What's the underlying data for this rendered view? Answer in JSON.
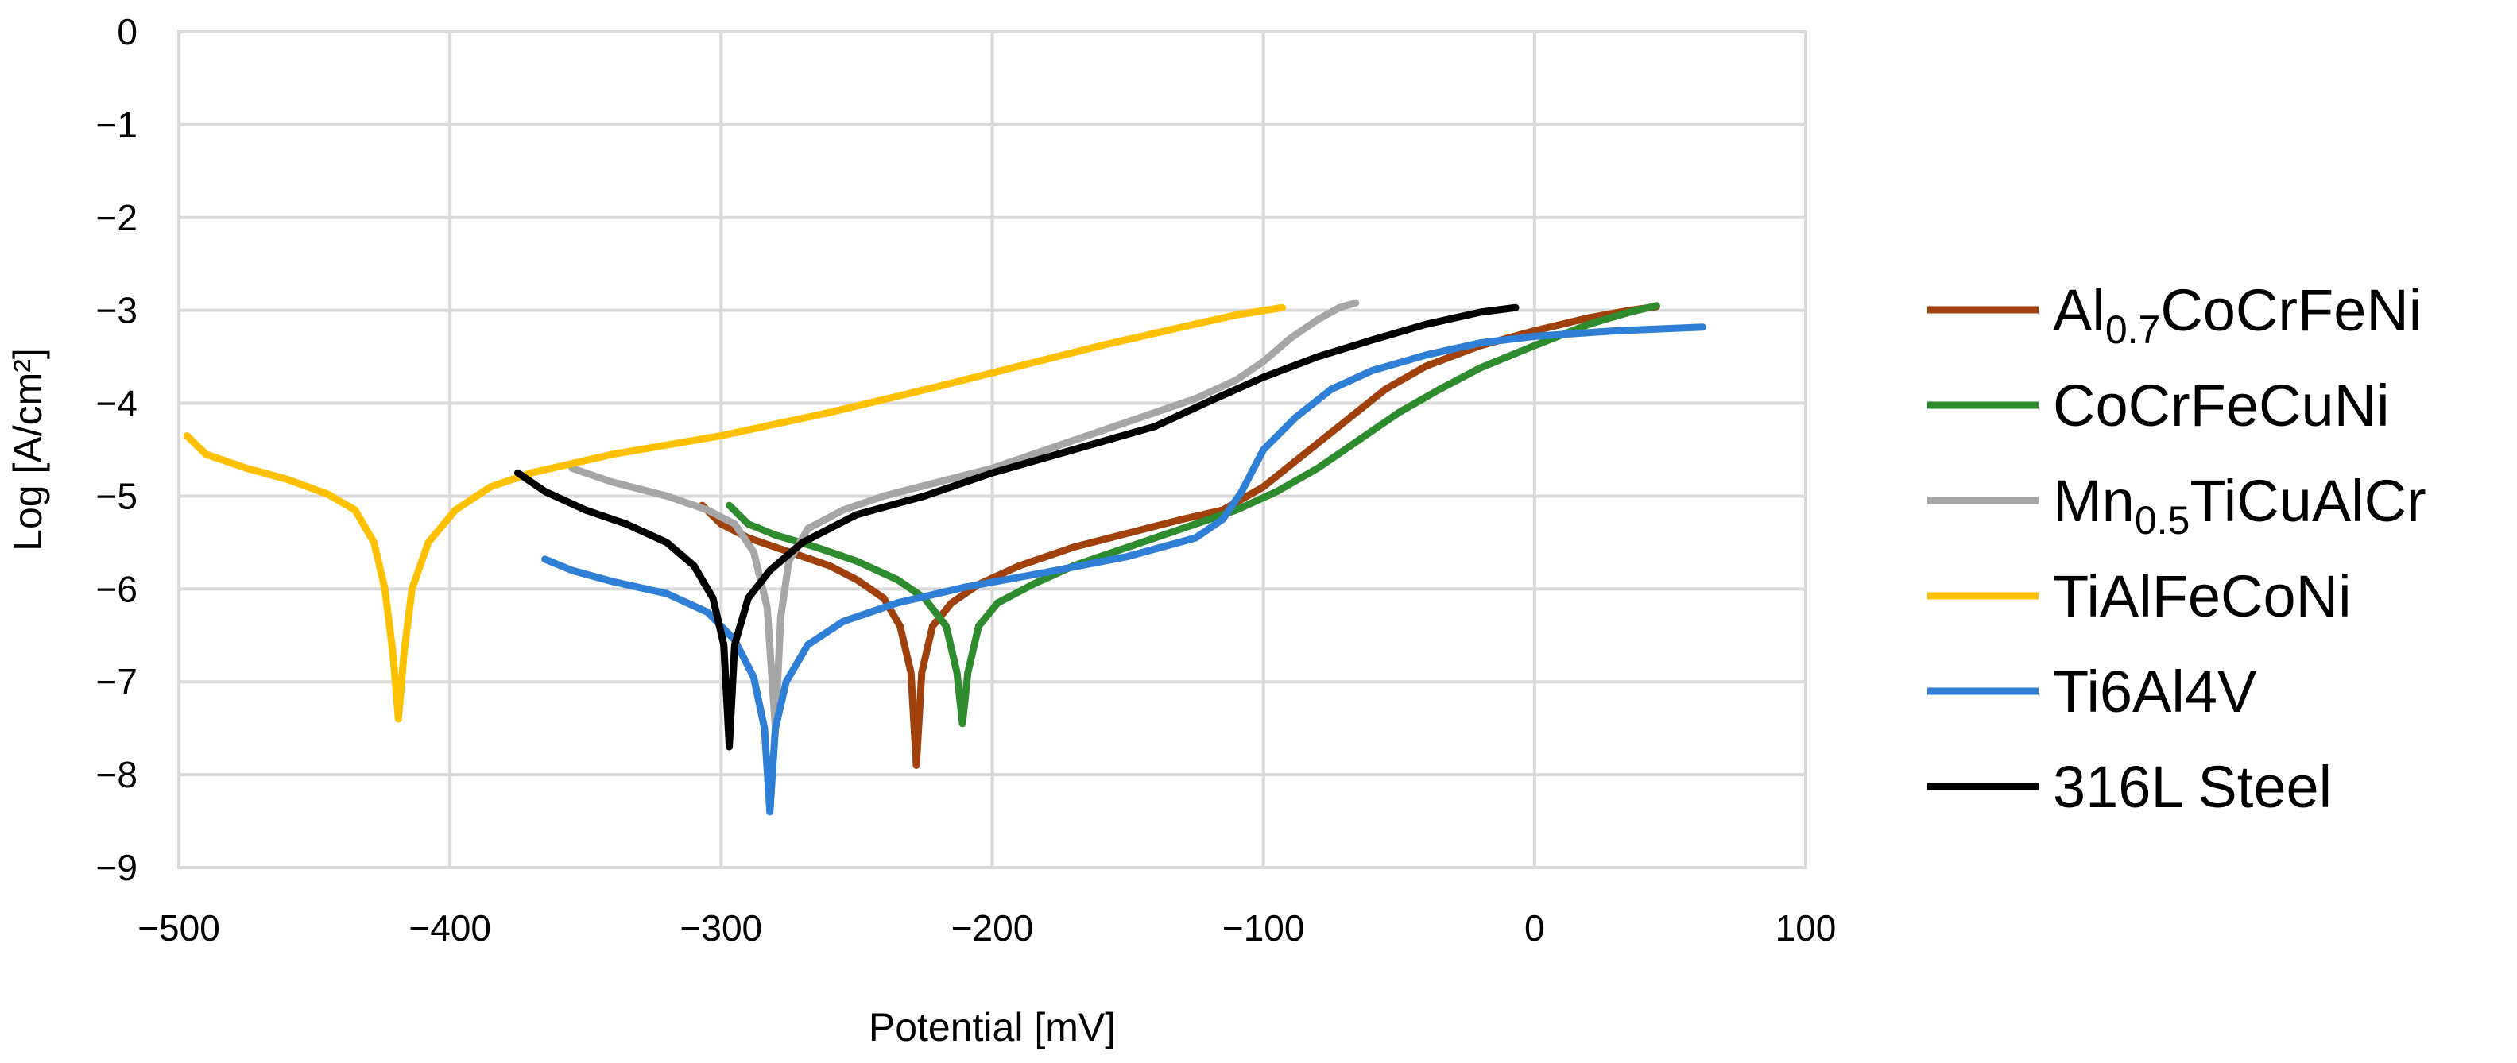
{
  "chart_data": {
    "type": "line",
    "title": "",
    "xlabel": "Potential [mV]",
    "ylabel": "Log [A/cm²]",
    "xlim": [
      -500,
      100
    ],
    "ylim": [
      -9,
      0
    ],
    "xticks": [
      -500,
      -400,
      -300,
      -200,
      -100,
      0,
      100
    ],
    "yticks": [
      0,
      -1,
      -2,
      -3,
      -4,
      -5,
      -6,
      -7,
      -8,
      -9
    ],
    "xtick_labels": [
      "−500",
      "−400",
      "−300",
      "−200",
      "−100",
      "0",
      "100"
    ],
    "ytick_labels": [
      "0",
      "−1",
      "−2",
      "−3",
      "−4",
      "−5",
      "−6",
      "−7",
      "−8",
      "−9"
    ],
    "grid": true,
    "legend_position": "right",
    "series": [
      {
        "name": "Al0.7CoCrFeNi",
        "label_parts": [
          "Al",
          "0.7",
          "CoCrFeNi"
        ],
        "color": "#a0410d",
        "points": [
          [
            -307,
            -5.1
          ],
          [
            -300,
            -5.3
          ],
          [
            -290,
            -5.45
          ],
          [
            -280,
            -5.55
          ],
          [
            -270,
            -5.65
          ],
          [
            -260,
            -5.75
          ],
          [
            -250,
            -5.9
          ],
          [
            -240,
            -6.1
          ],
          [
            -234,
            -6.4
          ],
          [
            -230,
            -6.9
          ],
          [
            -228,
            -7.9
          ],
          [
            -226,
            -6.9
          ],
          [
            -222,
            -6.4
          ],
          [
            -215,
            -6.15
          ],
          [
            -205,
            -5.95
          ],
          [
            -190,
            -5.75
          ],
          [
            -170,
            -5.55
          ],
          [
            -150,
            -5.4
          ],
          [
            -130,
            -5.25
          ],
          [
            -115,
            -5.15
          ],
          [
            -100,
            -4.9
          ],
          [
            -85,
            -4.55
          ],
          [
            -70,
            -4.2
          ],
          [
            -55,
            -3.85
          ],
          [
            -40,
            -3.6
          ],
          [
            -20,
            -3.38
          ],
          [
            0,
            -3.22
          ],
          [
            20,
            -3.08
          ],
          [
            35,
            -3.0
          ],
          [
            45,
            -2.96
          ]
        ]
      },
      {
        "name": "CoCrFeCuNi",
        "label_parts": [
          "CoCrFeCuNi"
        ],
        "color": "#2e8b2e",
        "points": [
          [
            -297,
            -5.1
          ],
          [
            -290,
            -5.3
          ],
          [
            -280,
            -5.42
          ],
          [
            -265,
            -5.55
          ],
          [
            -250,
            -5.7
          ],
          [
            -235,
            -5.9
          ],
          [
            -225,
            -6.1
          ],
          [
            -217,
            -6.4
          ],
          [
            -213,
            -6.9
          ],
          [
            -211,
            -7.45
          ],
          [
            -209,
            -6.9
          ],
          [
            -205,
            -6.4
          ],
          [
            -198,
            -6.15
          ],
          [
            -185,
            -5.95
          ],
          [
            -170,
            -5.75
          ],
          [
            -150,
            -5.55
          ],
          [
            -130,
            -5.35
          ],
          [
            -110,
            -5.15
          ],
          [
            -95,
            -4.95
          ],
          [
            -80,
            -4.7
          ],
          [
            -65,
            -4.4
          ],
          [
            -50,
            -4.1
          ],
          [
            -35,
            -3.85
          ],
          [
            -20,
            -3.62
          ],
          [
            0,
            -3.38
          ],
          [
            20,
            -3.15
          ],
          [
            35,
            -3.02
          ],
          [
            45,
            -2.95
          ]
        ]
      },
      {
        "name": "Mn0.5TiCuAlCr",
        "label_parts": [
          "Mn",
          "0.5",
          "TiCuAlCr"
        ],
        "color": "#a6a6a6",
        "points": [
          [
            -355,
            -4.7
          ],
          [
            -340,
            -4.85
          ],
          [
            -320,
            -5.0
          ],
          [
            -305,
            -5.15
          ],
          [
            -295,
            -5.3
          ],
          [
            -288,
            -5.6
          ],
          [
            -283,
            -6.2
          ],
          [
            -280,
            -7.5
          ],
          [
            -278,
            -6.3
          ],
          [
            -275,
            -5.7
          ],
          [
            -268,
            -5.35
          ],
          [
            -255,
            -5.15
          ],
          [
            -240,
            -5.0
          ],
          [
            -220,
            -4.85
          ],
          [
            -200,
            -4.7
          ],
          [
            -180,
            -4.5
          ],
          [
            -160,
            -4.3
          ],
          [
            -140,
            -4.1
          ],
          [
            -125,
            -3.95
          ],
          [
            -110,
            -3.75
          ],
          [
            -100,
            -3.55
          ],
          [
            -90,
            -3.3
          ],
          [
            -80,
            -3.1
          ],
          [
            -72,
            -2.97
          ],
          [
            -66,
            -2.92
          ]
        ]
      },
      {
        "name": "TiAlFeCoNi",
        "label_parts": [
          "TiAlFeCoNi"
        ],
        "color": "#ffc000",
        "points": [
          [
            -497,
            -4.35
          ],
          [
            -490,
            -4.55
          ],
          [
            -475,
            -4.7
          ],
          [
            -460,
            -4.82
          ],
          [
            -445,
            -4.98
          ],
          [
            -435,
            -5.15
          ],
          [
            -428,
            -5.5
          ],
          [
            -424,
            -6.0
          ],
          [
            -421,
            -6.7
          ],
          [
            -419,
            -7.4
          ],
          [
            -417,
            -6.7
          ],
          [
            -414,
            -6.0
          ],
          [
            -408,
            -5.5
          ],
          [
            -398,
            -5.15
          ],
          [
            -385,
            -4.9
          ],
          [
            -370,
            -4.75
          ],
          [
            -340,
            -4.55
          ],
          [
            -300,
            -4.35
          ],
          [
            -260,
            -4.1
          ],
          [
            -220,
            -3.82
          ],
          [
            -190,
            -3.6
          ],
          [
            -160,
            -3.38
          ],
          [
            -130,
            -3.18
          ],
          [
            -110,
            -3.05
          ],
          [
            -93,
            -2.97
          ]
        ]
      },
      {
        "name": "Ti6Al4V",
        "label_parts": [
          "Ti6Al4V"
        ],
        "color": "#2f7fd6",
        "points": [
          [
            -365,
            -5.68
          ],
          [
            -355,
            -5.8
          ],
          [
            -340,
            -5.92
          ],
          [
            -320,
            -6.05
          ],
          [
            -305,
            -6.25
          ],
          [
            -295,
            -6.55
          ],
          [
            -288,
            -6.95
          ],
          [
            -284,
            -7.5
          ],
          [
            -282,
            -8.4
          ],
          [
            -280,
            -7.5
          ],
          [
            -276,
            -7.0
          ],
          [
            -268,
            -6.6
          ],
          [
            -255,
            -6.35
          ],
          [
            -235,
            -6.15
          ],
          [
            -210,
            -5.98
          ],
          [
            -180,
            -5.82
          ],
          [
            -150,
            -5.65
          ],
          [
            -125,
            -5.45
          ],
          [
            -115,
            -5.25
          ],
          [
            -108,
            -4.95
          ],
          [
            -100,
            -4.5
          ],
          [
            -88,
            -4.15
          ],
          [
            -75,
            -3.85
          ],
          [
            -60,
            -3.65
          ],
          [
            -40,
            -3.48
          ],
          [
            -20,
            -3.35
          ],
          [
            0,
            -3.28
          ],
          [
            30,
            -3.22
          ],
          [
            62,
            -3.18
          ]
        ]
      },
      {
        "name": "316L Steel",
        "label_parts": [
          "316L Steel"
        ],
        "color": "#000000",
        "points": [
          [
            -375,
            -4.75
          ],
          [
            -365,
            -4.95
          ],
          [
            -350,
            -5.15
          ],
          [
            -335,
            -5.3
          ],
          [
            -320,
            -5.5
          ],
          [
            -310,
            -5.75
          ],
          [
            -303,
            -6.1
          ],
          [
            -299,
            -6.6
          ],
          [
            -297,
            -7.7
          ],
          [
            -295,
            -6.6
          ],
          [
            -290,
            -6.1
          ],
          [
            -282,
            -5.8
          ],
          [
            -270,
            -5.5
          ],
          [
            -250,
            -5.2
          ],
          [
            -225,
            -5.0
          ],
          [
            -200,
            -4.75
          ],
          [
            -170,
            -4.5
          ],
          [
            -140,
            -4.25
          ],
          [
            -120,
            -3.98
          ],
          [
            -100,
            -3.72
          ],
          [
            -80,
            -3.5
          ],
          [
            -60,
            -3.32
          ],
          [
            -40,
            -3.15
          ],
          [
            -20,
            -3.02
          ],
          [
            -7,
            -2.97
          ]
        ]
      }
    ]
  }
}
